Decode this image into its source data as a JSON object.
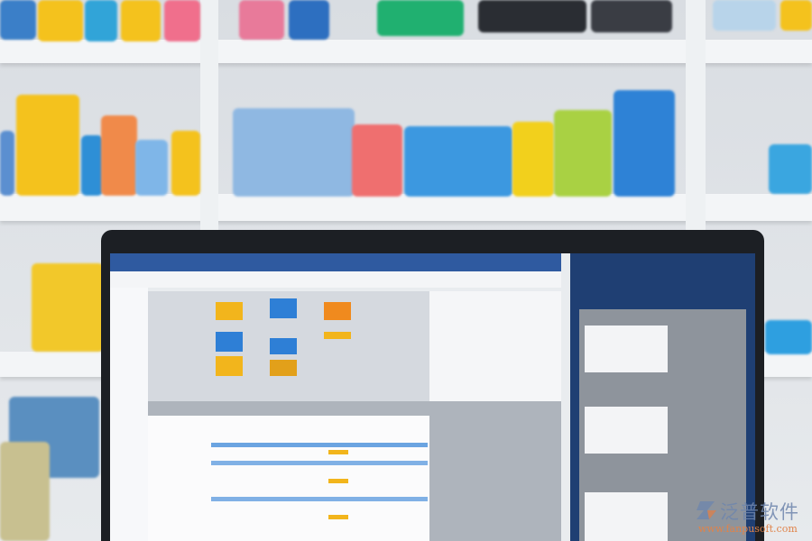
{
  "scene": {
    "colors": {
      "shelf": "#f3f5f7",
      "bezel": "#1c1f24",
      "screen_header": "#2f5aa0",
      "right_panel": "#1f3f73",
      "accent_yellow": "#f2b51c",
      "accent_blue": "#2e7fd6",
      "accent_orange": "#f08a1e"
    }
  },
  "watermark": {
    "brand": "泛普软件",
    "url": "www.fanpusoft.com"
  }
}
